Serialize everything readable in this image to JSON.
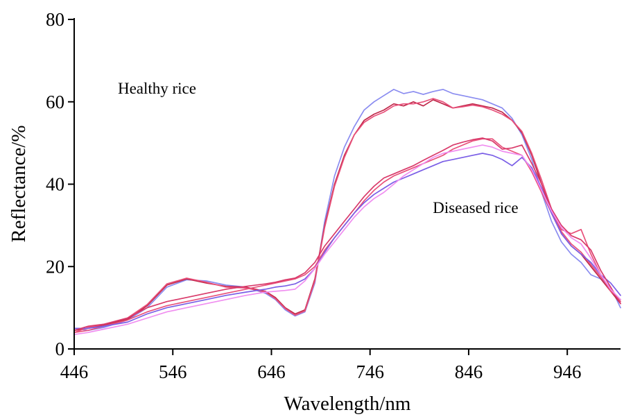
{
  "chart_data": {
    "type": "line",
    "title": "",
    "xlabel": "Wavelength/nm",
    "ylabel": "Reflectance/%",
    "xlim": [
      446,
      1000
    ],
    "ylim": [
      0,
      80
    ],
    "xticks": [
      446,
      546,
      646,
      746,
      846,
      946
    ],
    "yticks": [
      0,
      20,
      40,
      60,
      80
    ],
    "grid": false,
    "legend": "none",
    "annotations": [
      {
        "text": "Healthy rice",
        "x": 530,
        "y": 62
      },
      {
        "text": "Diseased rice",
        "x": 853,
        "y": 33
      }
    ],
    "series": [
      {
        "group": "healthy",
        "color": "#8a8cf0",
        "x": [
          446,
          460,
          476,
          500,
          520,
          540,
          560,
          580,
          600,
          620,
          640,
          650,
          660,
          670,
          680,
          690,
          700,
          710,
          720,
          730,
          740,
          750,
          760,
          770,
          780,
          790,
          800,
          810,
          820,
          830,
          840,
          850,
          860,
          870,
          880,
          890,
          900,
          910,
          920,
          930,
          940,
          950,
          960,
          970,
          980,
          990,
          1000
        ],
        "y": [
          5,
          4.5,
          5.2,
          7,
          10,
          15,
          16.8,
          16.5,
          15.5,
          15,
          13.5,
          12,
          9.5,
          8,
          9,
          16,
          31,
          42,
          49,
          54,
          58,
          60,
          61.5,
          63,
          62,
          62.5,
          61.8,
          62.5,
          63,
          62,
          61.5,
          61,
          60.5,
          59.5,
          58.5,
          56,
          52,
          46,
          38,
          31,
          26,
          23,
          21,
          18,
          17,
          15,
          10
        ]
      },
      {
        "group": "healthy",
        "color": "#c0284a",
        "x": [
          446,
          460,
          476,
          500,
          520,
          540,
          560,
          580,
          600,
          620,
          640,
          650,
          660,
          670,
          680,
          690,
          700,
          710,
          720,
          730,
          740,
          750,
          760,
          770,
          780,
          790,
          800,
          810,
          820,
          830,
          840,
          850,
          860,
          870,
          880,
          890,
          900,
          910,
          920,
          930,
          940,
          950,
          960,
          970,
          980,
          990,
          1000
        ],
        "y": [
          4.5,
          5,
          5.8,
          7.2,
          10.5,
          15.5,
          17,
          16,
          15.2,
          15,
          14,
          12.5,
          10,
          8.5,
          9.5,
          17,
          30,
          40,
          47,
          52,
          55.5,
          57,
          58,
          59.5,
          59,
          60,
          59,
          60.5,
          59.5,
          58.5,
          59,
          59.5,
          59,
          58.5,
          57.5,
          55.5,
          52.5,
          47,
          40,
          33,
          28,
          25,
          23,
          20,
          17,
          14,
          11
        ]
      },
      {
        "group": "healthy",
        "color": "#e8507a",
        "x": [
          446,
          460,
          476,
          500,
          520,
          540,
          560,
          580,
          600,
          620,
          640,
          650,
          660,
          670,
          680,
          690,
          700,
          710,
          720,
          730,
          740,
          750,
          760,
          770,
          780,
          790,
          800,
          810,
          820,
          830,
          840,
          850,
          860,
          870,
          880,
          890,
          900,
          910,
          920,
          930,
          940,
          950,
          960,
          970,
          980,
          990,
          1000
        ],
        "y": [
          4,
          5.2,
          6,
          7.5,
          10.8,
          15.8,
          17.2,
          16.2,
          15,
          14.8,
          13.8,
          12.2,
          9.8,
          8.2,
          9.2,
          16.5,
          29.5,
          39.5,
          46.5,
          52,
          55,
          56.5,
          57.5,
          59,
          59.5,
          59.5,
          60,
          60.8,
          60,
          58.5,
          58.8,
          59.2,
          58.8,
          58,
          57,
          55.5,
          52.8,
          47.5,
          41,
          34,
          28.5,
          25.5,
          23.5,
          20.5,
          17.5,
          14.5,
          11.5
        ]
      },
      {
        "group": "diseased",
        "color": "#e8507a",
        "x": [
          446,
          460,
          476,
          500,
          520,
          540,
          560,
          580,
          600,
          620,
          640,
          650,
          660,
          670,
          680,
          690,
          700,
          710,
          720,
          730,
          740,
          750,
          760,
          770,
          780,
          790,
          800,
          810,
          820,
          830,
          840,
          850,
          860,
          870,
          880,
          890,
          900,
          910,
          920,
          930,
          940,
          950,
          960,
          970,
          980,
          990,
          1000
        ],
        "y": [
          4,
          4.5,
          5.5,
          7,
          9,
          10.5,
          11.5,
          12.5,
          13.5,
          14.5,
          15.5,
          16,
          16.5,
          17,
          18,
          20,
          24,
          27,
          30,
          33,
          36,
          38.5,
          40.5,
          42,
          43,
          44,
          45,
          46,
          47,
          48.5,
          49.5,
          50.5,
          51,
          51,
          49,
          48,
          47,
          43,
          38,
          33,
          29,
          28,
          29,
          23,
          18,
          14,
          12
        ]
      },
      {
        "group": "diseased",
        "color": "#7a5ee6",
        "x": [
          446,
          460,
          476,
          500,
          520,
          540,
          560,
          580,
          600,
          620,
          640,
          650,
          660,
          670,
          680,
          690,
          700,
          710,
          720,
          730,
          740,
          750,
          760,
          770,
          780,
          790,
          800,
          810,
          820,
          830,
          840,
          850,
          860,
          870,
          880,
          890,
          900,
          910,
          920,
          930,
          940,
          950,
          960,
          970,
          980,
          990,
          1000
        ],
        "y": [
          5,
          5,
          5.5,
          6.5,
          8.5,
          10,
          11,
          12,
          13,
          13.8,
          14.5,
          15,
          15.3,
          15.8,
          17,
          19.5,
          23.5,
          27,
          30,
          33,
          35.5,
          37.5,
          39,
          40.5,
          41.5,
          42.5,
          43.5,
          44.5,
          45.5,
          46,
          46.5,
          47,
          47.5,
          47,
          46,
          44.5,
          46.5,
          44,
          39,
          33,
          28,
          25,
          23,
          21,
          18,
          16,
          13
        ]
      },
      {
        "group": "diseased",
        "color": "#d93a6a",
        "x": [
          446,
          460,
          476,
          500,
          520,
          540,
          560,
          580,
          600,
          620,
          640,
          650,
          660,
          670,
          680,
          690,
          700,
          710,
          720,
          730,
          740,
          750,
          760,
          770,
          780,
          790,
          800,
          810,
          820,
          830,
          840,
          850,
          860,
          870,
          880,
          890,
          900,
          910,
          920,
          930,
          940,
          950,
          960,
          970,
          980,
          990,
          1000
        ],
        "y": [
          4.5,
          5.5,
          6,
          7.5,
          10,
          11.5,
          12.5,
          13.5,
          14.5,
          15.2,
          15.8,
          16.2,
          16.8,
          17.2,
          18.5,
          21,
          25,
          28,
          31,
          34,
          37,
          39.5,
          41.5,
          42.5,
          43.5,
          44.5,
          45.8,
          47,
          48.2,
          49.5,
          50.2,
          50.8,
          51.2,
          50.5,
          48.5,
          48.8,
          49.5,
          45,
          40,
          34,
          30,
          27.5,
          26.5,
          24,
          19,
          15,
          11
        ]
      },
      {
        "group": "diseased",
        "color": "#f08ef0",
        "x": [
          446,
          460,
          476,
          500,
          520,
          540,
          560,
          580,
          600,
          620,
          640,
          650,
          660,
          670,
          680,
          690,
          700,
          710,
          720,
          730,
          740,
          750,
          760,
          770,
          780,
          790,
          800,
          810,
          820,
          830,
          840,
          850,
          860,
          870,
          880,
          890,
          900,
          910,
          920,
          930,
          940,
          950,
          960,
          970,
          980,
          990,
          1000
        ],
        "y": [
          3.5,
          4,
          4.8,
          6,
          7.5,
          9,
          10,
          11,
          12,
          13,
          13.8,
          14,
          14.2,
          14.5,
          16.5,
          19.5,
          23,
          26,
          29,
          32,
          34.5,
          36.5,
          38,
          40,
          42,
          43.5,
          45,
          46.5,
          47.5,
          48,
          48.5,
          49,
          49.5,
          49,
          48,
          47.5,
          47,
          43.5,
          38.5,
          33.5,
          29.5,
          27,
          25.5,
          22,
          18,
          14.5,
          12
        ]
      }
    ]
  }
}
